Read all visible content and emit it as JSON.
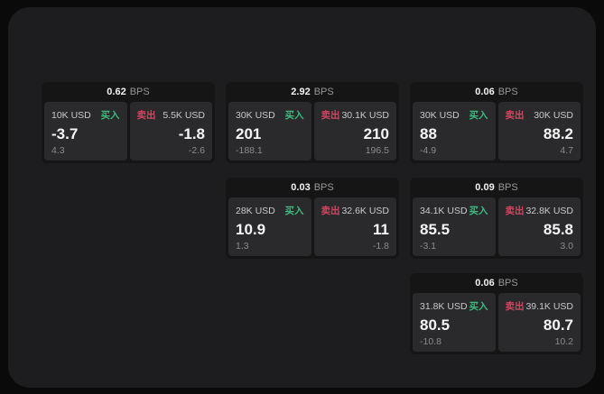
{
  "labels": {
    "bps": "BPS",
    "buy": "买入",
    "sell": "卖出"
  },
  "colors": {
    "buy": "#3eba7f",
    "sell": "#d2455f",
    "surface": "#1d1d1f",
    "card": "#151516",
    "panel": "#2a2a2c"
  },
  "cards": [
    {
      "bps": "0.62",
      "buy": {
        "size": "10K USD",
        "value": "-3.7",
        "sub": "4.3"
      },
      "sell": {
        "size": "5.5K USD",
        "value": "-1.8",
        "sub": "-2.6"
      }
    },
    {
      "bps": "2.92",
      "buy": {
        "size": "30K USD",
        "value": "201",
        "sub": "-188.1"
      },
      "sell": {
        "size": "30.1K USD",
        "value": "210",
        "sub": "196.5"
      }
    },
    {
      "bps": "0.06",
      "buy": {
        "size": "30K USD",
        "value": "88",
        "sub": "-4.9"
      },
      "sell": {
        "size": "30K USD",
        "value": "88.2",
        "sub": "4.7"
      }
    },
    {
      "bps": "0.03",
      "buy": {
        "size": "28K USD",
        "value": "10.9",
        "sub": "1.3"
      },
      "sell": {
        "size": "32.6K USD",
        "value": "11",
        "sub": "-1.8"
      }
    },
    {
      "bps": "0.09",
      "buy": {
        "size": "34.1K USD",
        "value": "85.5",
        "sub": "-3.1"
      },
      "sell": {
        "size": "32.8K USD",
        "value": "85.8",
        "sub": "3.0"
      }
    },
    {
      "bps": "0.06",
      "buy": {
        "size": "31.8K USD",
        "value": "80.5",
        "sub": "-10.8"
      },
      "sell": {
        "size": "39.1K USD",
        "value": "80.7",
        "sub": "10.2"
      }
    }
  ]
}
